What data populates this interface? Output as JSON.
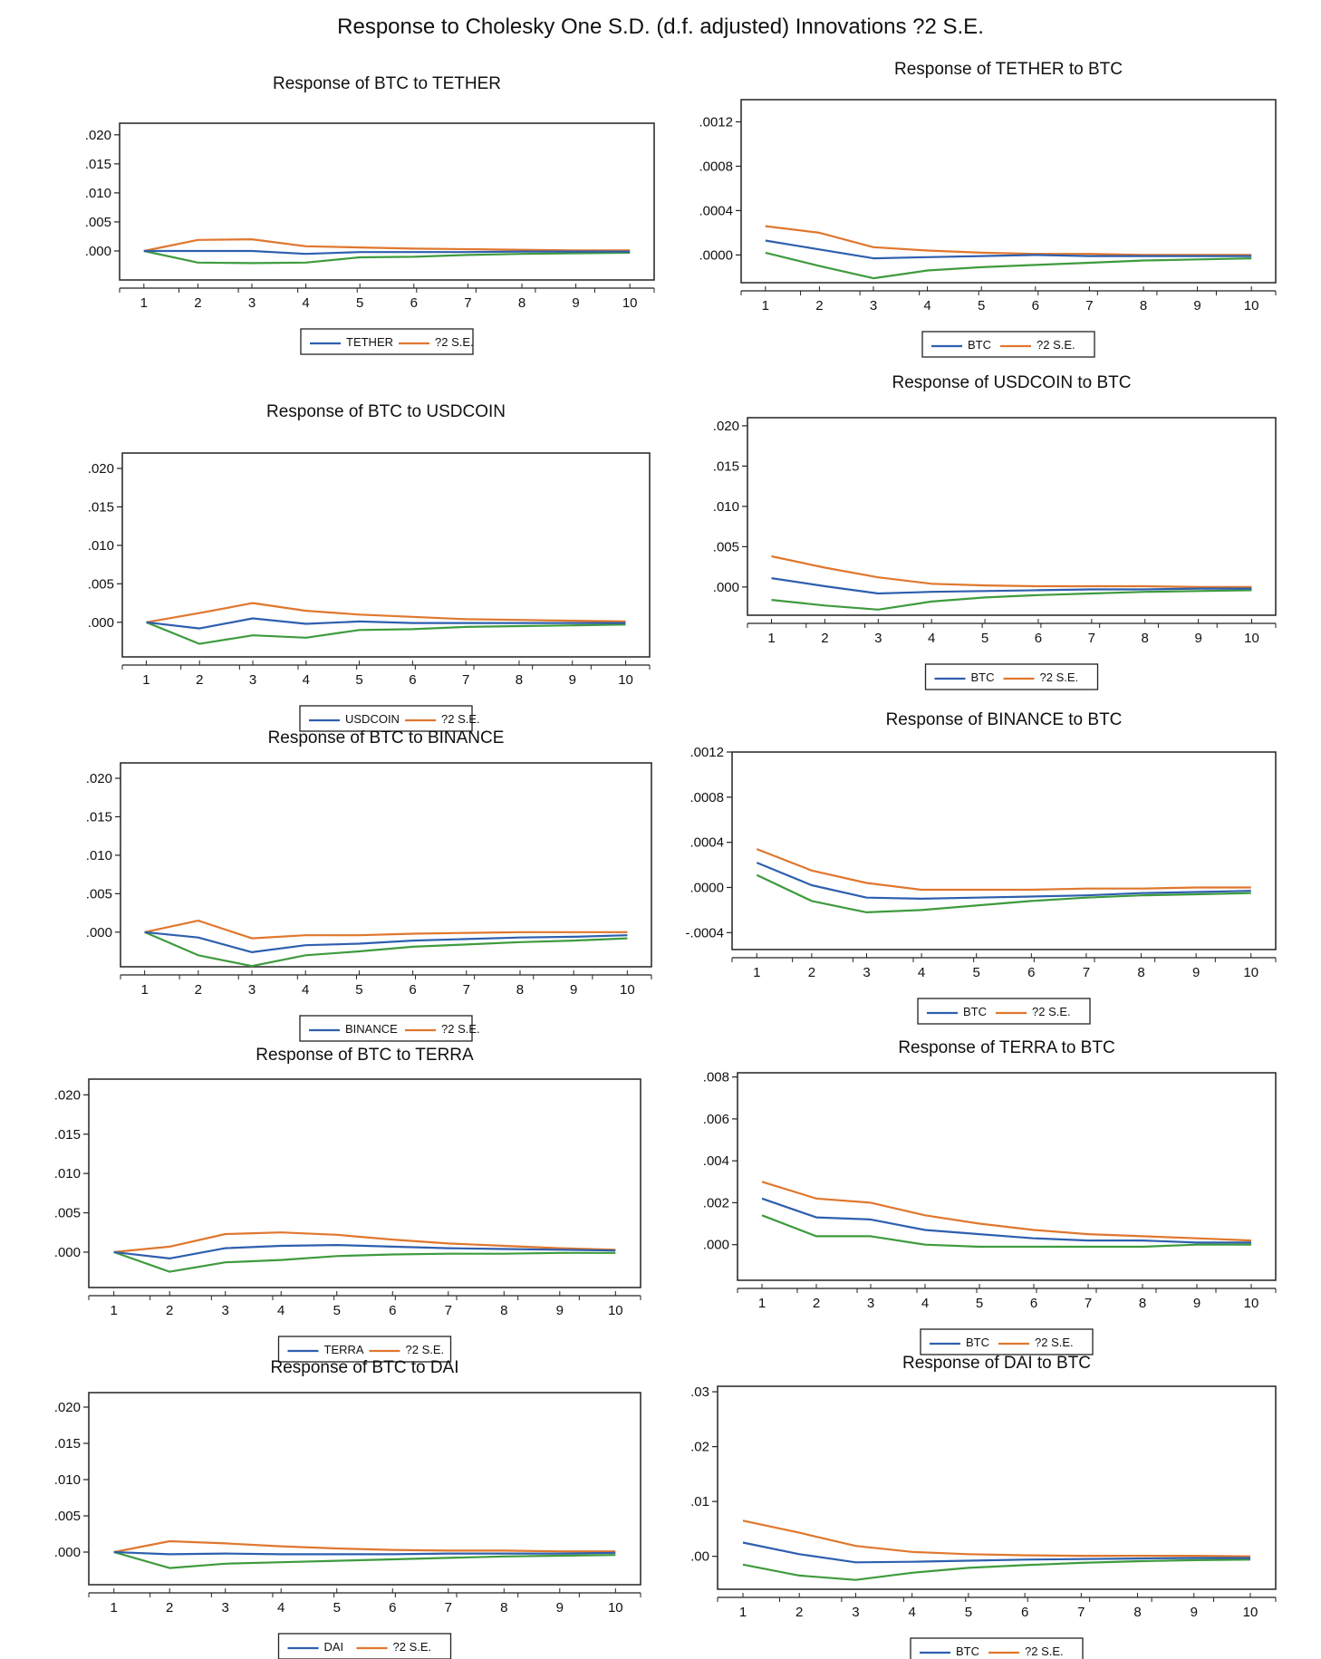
{
  "page_title": "Response to Cholesky One S.D. (d.f. adjusted) Innovations ?2 S.E.",
  "colors": {
    "response": "#2e5fae",
    "upper_band": "#e0772e",
    "lower_band": "#3e9b3e",
    "axis": "#222222"
  },
  "chart_data": [
    {
      "type": "line",
      "title": "Response of BTC to TETHER",
      "x": [
        1,
        2,
        3,
        4,
        5,
        6,
        7,
        8,
        9,
        10
      ],
      "ylim": [
        -0.005,
        0.022
      ],
      "yticks": [
        0.0,
        0.005,
        0.01,
        0.015,
        0.02
      ],
      "ytick_labels": [
        ".000",
        ".005",
        ".010",
        ".015",
        ".020"
      ],
      "legend": [
        "TETHER",
        "?2 S.E."
      ],
      "series": [
        {
          "name": "TETHER",
          "values": [
            0,
            0,
            0,
            -0.0005,
            -0.0002,
            -0.0002,
            -0.0002,
            -0.0001,
            -0.0001,
            -0.0001
          ]
        },
        {
          "name": "+2 S.E.",
          "values": [
            0,
            0.0019,
            0.002,
            0.0008,
            0.0006,
            0.0004,
            0.0003,
            0.0002,
            0.0001,
            0.0001
          ]
        },
        {
          "name": "-2 S.E.",
          "values": [
            0,
            -0.002,
            -0.0021,
            -0.002,
            -0.0011,
            -0.001,
            -0.0007,
            -0.0005,
            -0.0004,
            -0.0003
          ]
        }
      ]
    },
    {
      "type": "line",
      "title": "Response of TETHER to BTC",
      "x": [
        1,
        2,
        3,
        4,
        5,
        6,
        7,
        8,
        9,
        10
      ],
      "ylim": [
        -0.00025,
        0.0014
      ],
      "yticks": [
        0.0,
        0.0004,
        0.0008,
        0.0012
      ],
      "ytick_labels": [
        ".0000",
        ".0004",
        ".0008",
        ".0012"
      ],
      "legend": [
        "BTC",
        "?2 S.E."
      ],
      "series": [
        {
          "name": "BTC",
          "values": [
            0.00013,
            5e-05,
            -3e-05,
            -2e-05,
            -1e-05,
            0,
            -1e-05,
            -1e-05,
            -1e-05,
            -1e-05
          ]
        },
        {
          "name": "+2 S.E.",
          "values": [
            0.00026,
            0.0002,
            7e-05,
            4e-05,
            2e-05,
            1e-05,
            1e-05,
            0,
            0,
            0
          ]
        },
        {
          "name": "-2 S.E.",
          "values": [
            2e-05,
            -0.0001,
            -0.00021,
            -0.00014,
            -0.00011,
            -9e-05,
            -7e-05,
            -5e-05,
            -4e-05,
            -3e-05
          ]
        }
      ]
    },
    {
      "type": "line",
      "title": "Response of BTC to USDCOIN",
      "x": [
        1,
        2,
        3,
        4,
        5,
        6,
        7,
        8,
        9,
        10
      ],
      "ylim": [
        -0.0045,
        0.022
      ],
      "yticks": [
        0.0,
        0.005,
        0.01,
        0.015,
        0.02
      ],
      "ytick_labels": [
        ".000",
        ".005",
        ".010",
        ".015",
        ".020"
      ],
      "legend": [
        "USDCOIN",
        "?2 S.E."
      ],
      "series": [
        {
          "name": "USDCOIN",
          "values": [
            0,
            -0.0008,
            0.0005,
            -0.0002,
            0.0001,
            -0.0001,
            -0.0001,
            -0.0001,
            -0.0001,
            -0.0001
          ]
        },
        {
          "name": "+2 S.E.",
          "values": [
            0,
            0.0012,
            0.0025,
            0.0015,
            0.001,
            0.0007,
            0.0004,
            0.0003,
            0.0002,
            0.0001
          ]
        },
        {
          "name": "-2 S.E.",
          "values": [
            0,
            -0.0028,
            -0.0017,
            -0.002,
            -0.001,
            -0.0009,
            -0.0006,
            -0.0005,
            -0.0004,
            -0.0003
          ]
        }
      ]
    },
    {
      "type": "line",
      "title": "Response of USDCOIN to BTC",
      "x": [
        1,
        2,
        3,
        4,
        5,
        6,
        7,
        8,
        9,
        10
      ],
      "ylim": [
        -0.0035,
        0.021
      ],
      "yticks": [
        0.0,
        0.005,
        0.01,
        0.015,
        0.02
      ],
      "ytick_labels": [
        ".000",
        ".005",
        ".010",
        ".015",
        ".020"
      ],
      "legend": [
        "BTC",
        "?2 S.E."
      ],
      "series": [
        {
          "name": "BTC",
          "values": [
            0.0011,
            0.0001,
            -0.0008,
            -0.0006,
            -0.0005,
            -0.0004,
            -0.0003,
            -0.0003,
            -0.0002,
            -0.0002
          ]
        },
        {
          "name": "+2 S.E.",
          "values": [
            0.0038,
            0.0024,
            0.0012,
            0.0004,
            0.0002,
            0.0001,
            0.0001,
            0.0001,
            0,
            0
          ]
        },
        {
          "name": "-2 S.E.",
          "values": [
            -0.0016,
            -0.0023,
            -0.0028,
            -0.0018,
            -0.0013,
            -0.001,
            -0.0008,
            -0.0006,
            -0.0005,
            -0.0004
          ]
        }
      ]
    },
    {
      "type": "line",
      "title": "Response of BTC to BINANCE",
      "x": [
        1,
        2,
        3,
        4,
        5,
        6,
        7,
        8,
        9,
        10
      ],
      "ylim": [
        -0.0045,
        0.022
      ],
      "yticks": [
        0.0,
        0.005,
        0.01,
        0.015,
        0.02
      ],
      "ytick_labels": [
        ".000",
        ".005",
        ".010",
        ".015",
        ".020"
      ],
      "legend": [
        "BINANCE",
        "?2 S.E."
      ],
      "series": [
        {
          "name": "BINANCE",
          "values": [
            0,
            -0.0007,
            -0.0026,
            -0.0017,
            -0.0015,
            -0.0011,
            -0.0009,
            -0.0007,
            -0.0006,
            -0.0004
          ]
        },
        {
          "name": "+2 S.E.",
          "values": [
            0,
            0.0015,
            -0.0008,
            -0.0004,
            -0.0004,
            -0.0002,
            -0.0001,
            0,
            0,
            0
          ]
        },
        {
          "name": "-2 S.E.",
          "values": [
            0,
            -0.003,
            -0.0044,
            -0.003,
            -0.0025,
            -0.0019,
            -0.0016,
            -0.0013,
            -0.0011,
            -0.0008
          ]
        }
      ]
    },
    {
      "type": "line",
      "title": "Response of BINANCE to BTC",
      "x": [
        1,
        2,
        3,
        4,
        5,
        6,
        7,
        8,
        9,
        10
      ],
      "ylim": [
        -0.00055,
        0.0012
      ],
      "yticks": [
        -0.0004,
        0.0,
        0.0004,
        0.0008,
        0.0012
      ],
      "ytick_labels": [
        "-.0004",
        ".0000",
        ".0004",
        ".0008",
        ".0012"
      ],
      "legend": [
        "BTC",
        "?2 S.E."
      ],
      "series": [
        {
          "name": "BTC",
          "values": [
            0.00022,
            2e-05,
            -9e-05,
            -0.0001,
            -9e-05,
            -8e-05,
            -7e-05,
            -5e-05,
            -4e-05,
            -3e-05
          ]
        },
        {
          "name": "+2 S.E.",
          "values": [
            0.00034,
            0.00015,
            4e-05,
            -2e-05,
            -2e-05,
            -2e-05,
            -1e-05,
            -1e-05,
            0,
            0
          ]
        },
        {
          "name": "-2 S.E.",
          "values": [
            0.00011,
            -0.00012,
            -0.00022,
            -0.0002,
            -0.00016,
            -0.00012,
            -9e-05,
            -7e-05,
            -6e-05,
            -5e-05
          ]
        }
      ]
    },
    {
      "type": "line",
      "title": "Response of BTC to TERRA",
      "x": [
        1,
        2,
        3,
        4,
        5,
        6,
        7,
        8,
        9,
        10
      ],
      "ylim": [
        -0.0045,
        0.022
      ],
      "yticks": [
        0.0,
        0.005,
        0.01,
        0.015,
        0.02
      ],
      "ytick_labels": [
        ".000",
        ".005",
        ".010",
        ".015",
        ".020"
      ],
      "legend": [
        "TERRA",
        "?2 S.E."
      ],
      "series": [
        {
          "name": "TERRA",
          "values": [
            0,
            -0.0008,
            0.0005,
            0.0008,
            0.0009,
            0.0007,
            0.0005,
            0.0004,
            0.0003,
            0.0002
          ]
        },
        {
          "name": "+2 S.E.",
          "values": [
            0,
            0.0007,
            0.0023,
            0.0025,
            0.0022,
            0.0016,
            0.0011,
            0.0008,
            0.0005,
            0.0003
          ]
        },
        {
          "name": "-2 S.E.",
          "values": [
            0,
            -0.0025,
            -0.0013,
            -0.001,
            -0.0005,
            -0.0003,
            -0.0002,
            -0.0002,
            -0.0001,
            -0.0001
          ]
        }
      ]
    },
    {
      "type": "line",
      "title": "Response of TERRA to BTC",
      "x": [
        1,
        2,
        3,
        4,
        5,
        6,
        7,
        8,
        9,
        10
      ],
      "ylim": [
        -0.0017,
        0.0082
      ],
      "yticks": [
        0.0,
        0.002,
        0.004,
        0.006,
        0.008
      ],
      "ytick_labels": [
        ".000",
        ".002",
        ".004",
        ".006",
        ".008"
      ],
      "legend": [
        "BTC",
        "?2 S.E."
      ],
      "series": [
        {
          "name": "BTC",
          "values": [
            0.0022,
            0.0013,
            0.0012,
            0.0007,
            0.0005,
            0.0003,
            0.0002,
            0.0002,
            0.0001,
            0.0001
          ]
        },
        {
          "name": "+2 S.E.",
          "values": [
            0.003,
            0.0022,
            0.002,
            0.0014,
            0.001,
            0.0007,
            0.0005,
            0.0004,
            0.0003,
            0.0002
          ]
        },
        {
          "name": "-2 S.E.",
          "values": [
            0.0014,
            0.0004,
            0.0004,
            0,
            -0.0001,
            -0.0001,
            -0.0001,
            -0.0001,
            0,
            0
          ]
        }
      ]
    },
    {
      "type": "line",
      "title": "Response of BTC to DAI",
      "x": [
        1,
        2,
        3,
        4,
        5,
        6,
        7,
        8,
        9,
        10
      ],
      "ylim": [
        -0.0045,
        0.022
      ],
      "yticks": [
        0.0,
        0.005,
        0.01,
        0.015,
        0.02
      ],
      "ytick_labels": [
        ".000",
        ".005",
        ".010",
        ".015",
        ".020"
      ],
      "legend": [
        "DAI",
        "?2 S.E."
      ],
      "series": [
        {
          "name": "DAI",
          "values": [
            0,
            -0.0003,
            -0.0002,
            -0.0003,
            -0.0003,
            -0.0003,
            -0.0002,
            -0.0002,
            -0.0002,
            -0.0001
          ]
        },
        {
          "name": "+2 S.E.",
          "values": [
            0,
            0.0015,
            0.0012,
            0.0008,
            0.0005,
            0.0003,
            0.0002,
            0.0002,
            0.0001,
            0.0001
          ]
        },
        {
          "name": "-2 S.E.",
          "values": [
            0,
            -0.0022,
            -0.0016,
            -0.0014,
            -0.0012,
            -0.001,
            -0.0008,
            -0.0006,
            -0.0005,
            -0.0004
          ]
        }
      ]
    },
    {
      "type": "line",
      "title": "Response of DAI to BTC",
      "x": [
        1,
        2,
        3,
        4,
        5,
        6,
        7,
        8,
        9,
        10
      ],
      "ylim": [
        -0.006,
        0.031
      ],
      "yticks": [
        0.0,
        0.01,
        0.02,
        0.03
      ],
      "ytick_labels": [
        ".00",
        ".01",
        ".02",
        ".03"
      ],
      "legend": [
        "BTC",
        "?2 S.E."
      ],
      "series": [
        {
          "name": "BTC",
          "values": [
            0.0025,
            0.0004,
            -0.0011,
            -0.001,
            -0.0008,
            -0.0006,
            -0.0005,
            -0.0004,
            -0.0003,
            -0.0003
          ]
        },
        {
          "name": "+2 S.E.",
          "values": [
            0.0065,
            0.0043,
            0.0019,
            0.0008,
            0.0004,
            0.0002,
            0.0001,
            0.0001,
            0.0001,
            0
          ]
        },
        {
          "name": "-2 S.E.",
          "values": [
            -0.0015,
            -0.0035,
            -0.0043,
            -0.003,
            -0.0021,
            -0.0016,
            -0.0012,
            -0.0009,
            -0.0007,
            -0.0006
          ]
        }
      ]
    }
  ]
}
